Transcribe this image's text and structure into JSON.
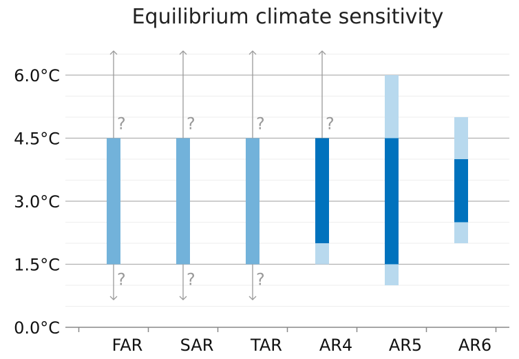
{
  "chart_data": {
    "type": "bar",
    "title": "Equilibrium climate sensitivity",
    "xlabel": "",
    "ylabel": "",
    "ylim": [
      0,
      6.5
    ],
    "yticks": [
      0.0,
      1.5,
      3.0,
      4.5,
      6.0
    ],
    "ytick_labels": [
      "0.0°C",
      "1.5°C",
      "3.0°C",
      "4.5°C",
      "6.0°C"
    ],
    "grid": "horizontal",
    "categories": [
      "FAR",
      "SAR",
      "TAR",
      "AR4",
      "AR5",
      "AR6"
    ],
    "series": [
      {
        "key": "likely_range",
        "values": [
          [
            1.5,
            4.5
          ],
          [
            1.5,
            4.5
          ],
          [
            1.5,
            4.5
          ],
          [
            2.0,
            4.5
          ],
          [
            1.5,
            4.5
          ],
          [
            2.5,
            4.0
          ]
        ]
      },
      {
        "key": "very_likely_range",
        "values": [
          null,
          null,
          null,
          [
            1.5,
            4.5
          ],
          [
            1.0,
            6.0
          ],
          [
            2.0,
            5.0
          ]
        ]
      }
    ],
    "open_bounds": {
      "upper": [
        true,
        true,
        true,
        true,
        false,
        false
      ],
      "lower": [
        true,
        true,
        true,
        false,
        false,
        false
      ],
      "marker": "?"
    },
    "colors": {
      "likely_old": "#72b2da",
      "likely": "#0072bd",
      "very_likely": "#b8d9ee",
      "arrow": "#999999",
      "major_grid": "#b0b0b0",
      "minor_grid": "#eeeeee",
      "axis": "#888888"
    }
  }
}
